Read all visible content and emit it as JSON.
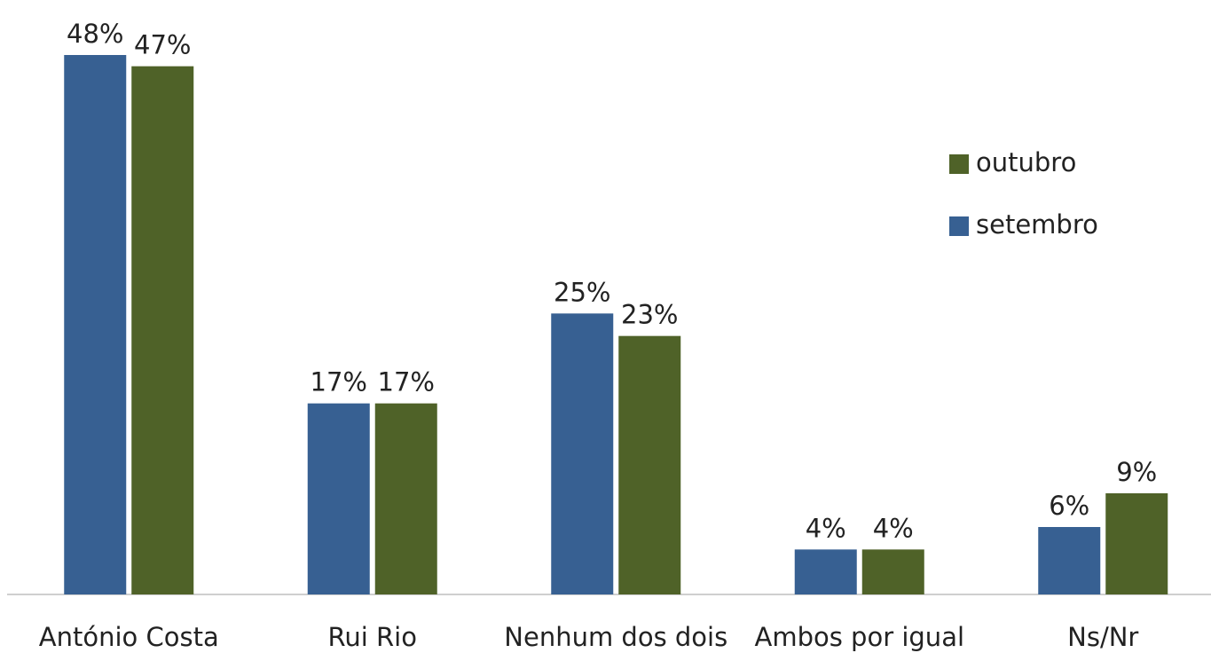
{
  "chart_data": {
    "type": "bar",
    "categories": [
      "António Costa",
      "Rui Rio",
      "Nenhum dos dois",
      "Ambos por igual",
      "Ns/Nr"
    ],
    "series": [
      {
        "name": "setembro",
        "color": "#376092",
        "values": [
          48,
          17,
          25,
          4,
          6
        ],
        "value_labels": [
          "48%",
          "17%",
          "25%",
          "4%",
          "6%"
        ]
      },
      {
        "name": "outubro",
        "color": "#4f6228",
        "values": [
          47,
          17,
          23,
          4,
          9
        ],
        "value_labels": [
          "47%",
          "17%",
          "23%",
          "4%",
          "9%"
        ]
      }
    ],
    "legend": "right"
  }
}
